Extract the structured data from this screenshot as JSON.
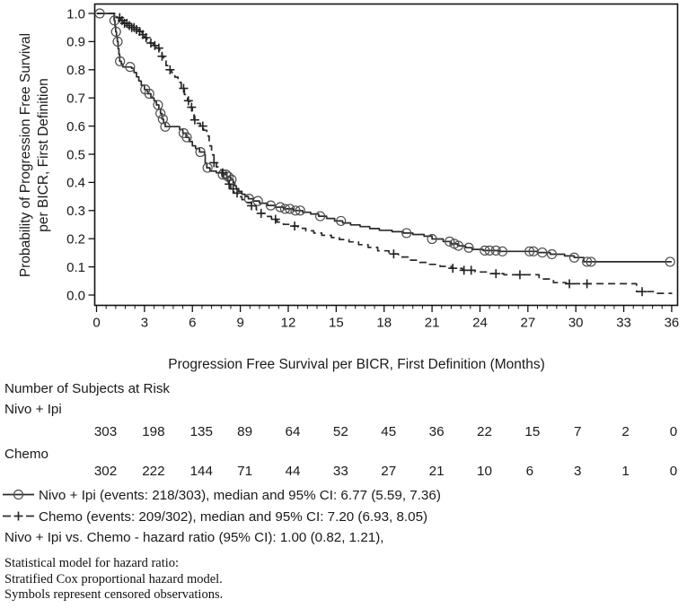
{
  "chart_data": {
    "type": "line",
    "subtype": "kaplan-meier-step",
    "title": "",
    "xlabel": "Progression Free Survival per BICR, First Definition (Months)",
    "ylabel_line1": "Probability of Progression Free Survival",
    "ylabel_line2": "per BICR, First Definition",
    "xlim": [
      0,
      36
    ],
    "ylim": [
      0.0,
      1.0
    ],
    "x_ticks": [
      0,
      3,
      6,
      9,
      12,
      15,
      18,
      21,
      24,
      27,
      30,
      33,
      36
    ],
    "x_minor_step": 0.6,
    "y_ticks": [
      1.0,
      0.9,
      0.8,
      0.7,
      0.6,
      0.5,
      0.4,
      0.3,
      0.2,
      0.1,
      0.0
    ],
    "grid": false,
    "legend_position": "below",
    "series": [
      {
        "name": "Nivo + Ipi",
        "line": "solid",
        "marker": "circle",
        "color": "#2a2a2a",
        "marker_color": "#4f4f4f",
        "events": "218/303",
        "median": "6.77",
        "ci95": "(5.59, 7.36)",
        "steps": [
          [
            0,
            1.0
          ],
          [
            1.1,
            0.975
          ],
          [
            1.15,
            0.955
          ],
          [
            1.2,
            0.935
          ],
          [
            1.25,
            0.915
          ],
          [
            1.3,
            0.9
          ],
          [
            1.35,
            0.875
          ],
          [
            1.4,
            0.855
          ],
          [
            1.45,
            0.83
          ],
          [
            1.55,
            0.82
          ],
          [
            1.65,
            0.81
          ],
          [
            2.2,
            0.805
          ],
          [
            2.35,
            0.79
          ],
          [
            2.5,
            0.775
          ],
          [
            2.65,
            0.76
          ],
          [
            2.8,
            0.745
          ],
          [
            3.0,
            0.73
          ],
          [
            3.2,
            0.715
          ],
          [
            3.4,
            0.7
          ],
          [
            3.6,
            0.69
          ],
          [
            3.75,
            0.675
          ],
          [
            3.9,
            0.66
          ],
          [
            4.0,
            0.645
          ],
          [
            4.1,
            0.625
          ],
          [
            4.2,
            0.61
          ],
          [
            4.3,
            0.598
          ],
          [
            5.2,
            0.588
          ],
          [
            5.4,
            0.575
          ],
          [
            5.6,
            0.56
          ],
          [
            5.8,
            0.545
          ],
          [
            6.0,
            0.53
          ],
          [
            6.2,
            0.52
          ],
          [
            6.45,
            0.508
          ],
          [
            6.77,
            0.498
          ],
          [
            6.8,
            0.468
          ],
          [
            6.9,
            0.452
          ],
          [
            7.1,
            0.44
          ],
          [
            7.5,
            0.434
          ],
          [
            7.9,
            0.428
          ],
          [
            8.15,
            0.42
          ],
          [
            8.4,
            0.41
          ],
          [
            8.55,
            0.4
          ],
          [
            8.65,
            0.388
          ],
          [
            8.75,
            0.378
          ],
          [
            8.9,
            0.368
          ],
          [
            9.1,
            0.358
          ],
          [
            9.3,
            0.35
          ],
          [
            9.5,
            0.342
          ],
          [
            9.8,
            0.334
          ],
          [
            10.2,
            0.326
          ],
          [
            10.7,
            0.318
          ],
          [
            11.2,
            0.312
          ],
          [
            11.7,
            0.306
          ],
          [
            12.3,
            0.3
          ],
          [
            12.9,
            0.294
          ],
          [
            13.4,
            0.288
          ],
          [
            13.9,
            0.28
          ],
          [
            14.4,
            0.272
          ],
          [
            14.9,
            0.263
          ],
          [
            15.4,
            0.256
          ],
          [
            15.9,
            0.249
          ],
          [
            16.5,
            0.243
          ],
          [
            17.1,
            0.236
          ],
          [
            17.7,
            0.23
          ],
          [
            18.5,
            0.225
          ],
          [
            19.2,
            0.22
          ],
          [
            19.8,
            0.215
          ],
          [
            20.5,
            0.209
          ],
          [
            21.0,
            0.199
          ],
          [
            21.7,
            0.19
          ],
          [
            22.2,
            0.182
          ],
          [
            22.6,
            0.175
          ],
          [
            23.1,
            0.168
          ],
          [
            23.5,
            0.162
          ],
          [
            24.2,
            0.158
          ],
          [
            25.2,
            0.155
          ],
          [
            27.6,
            0.151
          ],
          [
            28.4,
            0.145
          ],
          [
            29.3,
            0.139
          ],
          [
            29.9,
            0.133
          ],
          [
            30.5,
            0.118
          ],
          [
            36,
            0.118
          ]
        ],
        "censor_t": [
          0.2,
          1.12,
          1.22,
          1.32,
          1.47,
          2.1,
          3.05,
          3.3,
          3.85,
          4.0,
          4.15,
          4.3,
          5.45,
          5.65,
          6.5,
          6.95,
          7.9,
          8.1,
          8.25,
          8.45,
          9.55,
          10.1,
          10.9,
          11.5,
          11.8,
          12.1,
          12.45,
          12.75,
          14.0,
          15.3,
          19.4,
          21.0,
          22.1,
          22.4,
          22.65,
          23.3,
          24.3,
          24.6,
          25.0,
          25.4,
          27.1,
          27.35,
          27.9,
          28.5,
          29.9,
          30.7,
          30.95,
          35.9
        ]
      },
      {
        "name": "Chemo",
        "line": "dashed",
        "marker": "plus",
        "color": "#2a2a2a",
        "marker_color": "#222222",
        "events": "209/302",
        "median": "7.20",
        "ci95": "(6.93, 8.05)",
        "steps": [
          [
            0,
            1.0
          ],
          [
            1.3,
            0.985
          ],
          [
            1.5,
            0.975
          ],
          [
            1.7,
            0.965
          ],
          [
            1.95,
            0.957
          ],
          [
            2.2,
            0.95
          ],
          [
            2.45,
            0.943
          ],
          [
            2.65,
            0.936
          ],
          [
            2.85,
            0.925
          ],
          [
            3.0,
            0.914
          ],
          [
            3.15,
            0.904
          ],
          [
            3.35,
            0.895
          ],
          [
            3.55,
            0.886
          ],
          [
            3.75,
            0.877
          ],
          [
            3.95,
            0.867
          ],
          [
            4.1,
            0.848
          ],
          [
            4.2,
            0.832
          ],
          [
            4.35,
            0.815
          ],
          [
            4.5,
            0.8
          ],
          [
            4.7,
            0.79
          ],
          [
            4.9,
            0.774
          ],
          [
            5.1,
            0.755
          ],
          [
            5.3,
            0.734
          ],
          [
            5.5,
            0.712
          ],
          [
            5.7,
            0.69
          ],
          [
            5.85,
            0.667
          ],
          [
            6.0,
            0.641
          ],
          [
            6.1,
            0.622
          ],
          [
            6.3,
            0.61
          ],
          [
            6.5,
            0.6
          ],
          [
            6.7,
            0.585
          ],
          [
            6.9,
            0.565
          ],
          [
            7.05,
            0.53
          ],
          [
            7.2,
            0.498
          ],
          [
            7.35,
            0.47
          ],
          [
            7.5,
            0.455
          ],
          [
            7.7,
            0.445
          ],
          [
            7.85,
            0.434
          ],
          [
            8.0,
            0.414
          ],
          [
            8.2,
            0.394
          ],
          [
            8.4,
            0.377
          ],
          [
            8.6,
            0.362
          ],
          [
            8.85,
            0.349
          ],
          [
            9.1,
            0.339
          ],
          [
            9.4,
            0.329
          ],
          [
            9.7,
            0.317
          ],
          [
            10.0,
            0.303
          ],
          [
            10.3,
            0.29
          ],
          [
            10.6,
            0.279
          ],
          [
            10.95,
            0.269
          ],
          [
            11.3,
            0.259
          ],
          [
            11.7,
            0.251
          ],
          [
            12.1,
            0.245
          ],
          [
            12.6,
            0.237
          ],
          [
            13.1,
            0.228
          ],
          [
            13.6,
            0.22
          ],
          [
            14.1,
            0.212
          ],
          [
            14.7,
            0.204
          ],
          [
            15.2,
            0.197
          ],
          [
            15.8,
            0.189
          ],
          [
            16.4,
            0.179
          ],
          [
            17.0,
            0.169
          ],
          [
            17.6,
            0.157
          ],
          [
            18.3,
            0.146
          ],
          [
            18.9,
            0.135
          ],
          [
            19.5,
            0.124
          ],
          [
            20.1,
            0.116
          ],
          [
            20.8,
            0.109
          ],
          [
            21.5,
            0.102
          ],
          [
            22.2,
            0.095
          ],
          [
            22.9,
            0.088
          ],
          [
            23.7,
            0.082
          ],
          [
            24.5,
            0.076
          ],
          [
            25.5,
            0.072
          ],
          [
            27.7,
            0.057
          ],
          [
            28.6,
            0.044
          ],
          [
            29.4,
            0.04
          ],
          [
            33.8,
            0.012
          ],
          [
            34.9,
            0.006
          ],
          [
            36,
            0.004
          ]
        ],
        "censor_t": [
          1.45,
          1.6,
          1.75,
          1.9,
          2.05,
          2.2,
          2.35,
          2.5,
          2.7,
          2.9,
          3.1,
          3.4,
          3.65,
          3.9,
          4.1,
          4.6,
          5.45,
          5.75,
          5.95,
          6.15,
          6.65,
          7.35,
          7.9,
          8.3,
          8.55,
          8.8,
          9.7,
          10.3,
          11.2,
          12.4,
          18.6,
          22.3,
          23.0,
          23.45,
          25.0,
          26.5,
          29.6,
          30.7,
          34.15
        ]
      }
    ]
  },
  "risk_table": {
    "title": "Number of Subjects at Risk",
    "groups": [
      {
        "label": "Nivo + Ipi",
        "counts": [
          303,
          198,
          135,
          89,
          64,
          52,
          45,
          36,
          22,
          15,
          7,
          2,
          0
        ]
      },
      {
        "label": "Chemo",
        "counts": [
          302,
          222,
          144,
          71,
          44,
          33,
          27,
          21,
          10,
          6,
          3,
          1,
          0
        ]
      }
    ]
  },
  "legend": {
    "items": [
      {
        "label": "Nivo + Ipi (events: 218/303), median and 95% CI: 6.77 (5.59, 7.36)"
      },
      {
        "label": "Chemo (events: 209/302), median and 95% CI: 7.20 (6.93, 8.05)"
      }
    ],
    "comparison": "Nivo + Ipi vs. Chemo - hazard ratio (95% CI): 1.00 (0.82, 1.21),"
  },
  "footnotes": [
    "Statistical model for hazard ratio:",
    "Stratified Cox proportional hazard model.",
    "Symbols represent censored observations."
  ]
}
